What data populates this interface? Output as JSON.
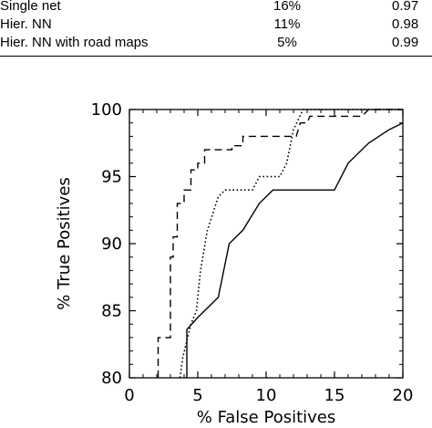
{
  "table": {
    "rows": [
      {
        "method": "Single net",
        "error": "16%",
        "score": "0.97"
      },
      {
        "method": "Hier. NN",
        "error": "11%",
        "score": "0.98"
      },
      {
        "method": "Hier. NN with road maps",
        "error": "5%",
        "score": "0.99"
      }
    ]
  },
  "chart_data": {
    "type": "line",
    "title": "",
    "xlabel": "% False Positives",
    "ylabel": "% True Positives",
    "xlim": [
      0,
      20
    ],
    "ylim": [
      80,
      100
    ],
    "xticks": [
      "0",
      "5",
      "10",
      "15",
      "20"
    ],
    "yticks": [
      "80",
      "85",
      "90",
      "95",
      "100"
    ],
    "grid": false,
    "series": [
      {
        "style": "dashed",
        "color": "#000000",
        "points": [
          [
            2.1,
            80
          ],
          [
            2.1,
            83
          ],
          [
            3.0,
            83
          ],
          [
            3.0,
            89
          ],
          [
            3.2,
            89
          ],
          [
            3.2,
            90.5
          ],
          [
            3.5,
            90.5
          ],
          [
            3.5,
            93
          ],
          [
            4.0,
            93
          ],
          [
            4.0,
            94
          ],
          [
            4.5,
            94
          ],
          [
            4.5,
            95.5
          ],
          [
            5.0,
            95.5
          ],
          [
            5.0,
            96
          ],
          [
            5.5,
            96
          ],
          [
            5.5,
            97
          ],
          [
            7.5,
            97
          ],
          [
            7.5,
            97.3
          ],
          [
            8.3,
            97.3
          ],
          [
            8.3,
            98
          ],
          [
            12.2,
            98
          ],
          [
            12.5,
            99
          ],
          [
            13.0,
            99
          ],
          [
            13.2,
            99.5
          ],
          [
            17.0,
            99.5
          ],
          [
            17.5,
            100
          ],
          [
            20,
            100
          ]
        ]
      },
      {
        "style": "dotted",
        "color": "#000000",
        "points": [
          [
            3.7,
            80
          ],
          [
            3.9,
            81.5
          ],
          [
            4.5,
            84
          ],
          [
            4.9,
            85
          ],
          [
            5.2,
            88
          ],
          [
            5.7,
            91
          ],
          [
            6.5,
            93.5
          ],
          [
            7.0,
            94
          ],
          [
            9.0,
            94
          ],
          [
            9.5,
            95
          ],
          [
            11.0,
            95
          ],
          [
            11.5,
            96
          ],
          [
            12.0,
            98.5
          ],
          [
            12.7,
            100
          ],
          [
            20,
            100
          ]
        ]
      },
      {
        "style": "solid",
        "color": "#000000",
        "points": [
          [
            4.2,
            80
          ],
          [
            4.2,
            83.6
          ],
          [
            5.0,
            84.5
          ],
          [
            6.5,
            86
          ],
          [
            7.3,
            90
          ],
          [
            8.3,
            91
          ],
          [
            9.5,
            93
          ],
          [
            10.5,
            94
          ],
          [
            15.0,
            94
          ],
          [
            16.0,
            96
          ],
          [
            17.5,
            97.5
          ],
          [
            19.0,
            98.5
          ],
          [
            20.0,
            99
          ]
        ]
      }
    ]
  }
}
